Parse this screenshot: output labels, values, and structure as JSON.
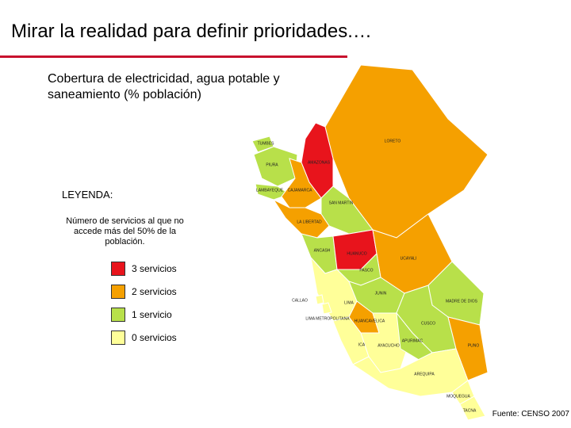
{
  "header": {
    "title": "Mirar la realidad para definir prioridades.…"
  },
  "subtitle": "Cobertura de electricidad, agua potable y saneamiento (% población)",
  "legend": {
    "title": "LEYENDA:",
    "description": "Número de servicios al que no accede más del 50% de la población.",
    "items": [
      {
        "label": "3 servicios",
        "color": "#e8141c"
      },
      {
        "label": "2 servicios",
        "color": "#f5a000"
      },
      {
        "label": "1 servicio",
        "color": "#b8e04a"
      },
      {
        "label": "0 servicios",
        "color": "#ffff99"
      }
    ]
  },
  "map": {
    "regions": [
      {
        "name": "LORETO",
        "color": "#f5a000"
      },
      {
        "name": "AMAZONAS",
        "color": "#e8141c"
      },
      {
        "name": "TUMBES",
        "color": "#b8e04a"
      },
      {
        "name": "PIURA",
        "color": "#b8e04a"
      },
      {
        "name": "LAMBAYEQUE",
        "color": "#b8e04a"
      },
      {
        "name": "CAJAMARCA",
        "color": "#f5a000"
      },
      {
        "name": "SAN MARTIN",
        "color": "#b8e04a"
      },
      {
        "name": "LA LIBERTAD",
        "color": "#f5a000"
      },
      {
        "name": "ANCASH",
        "color": "#b8e04a"
      },
      {
        "name": "HUANUCO",
        "color": "#e8141c"
      },
      {
        "name": "UCAYALI",
        "color": "#f5a000"
      },
      {
        "name": "PASCO",
        "color": "#b8e04a"
      },
      {
        "name": "LIMA",
        "color": "#ffff99"
      },
      {
        "name": "JUNIN",
        "color": "#b8e04a"
      },
      {
        "name": "MADRE DE DIOS",
        "color": "#b8e04a"
      },
      {
        "name": "CUSCO",
        "color": "#b8e04a"
      },
      {
        "name": "HUANCAVELICA",
        "color": "#f5a000"
      },
      {
        "name": "ICA",
        "color": "#ffff99"
      },
      {
        "name": "AYACUCHO",
        "color": "#ffff99"
      },
      {
        "name": "APURIMAC",
        "color": "#b8e04a"
      },
      {
        "name": "PUNO",
        "color": "#f5a000"
      },
      {
        "name": "AREQUIPA",
        "color": "#ffff99"
      },
      {
        "name": "MOQUEGUA",
        "color": "#ffff99"
      },
      {
        "name": "TACNA",
        "color": "#ffff99"
      },
      {
        "name": "CALLAO",
        "color": "#ffff99"
      },
      {
        "name": "LIMA METROPOLITANA",
        "color": "#ffff99"
      }
    ]
  },
  "source": "Fuente: CENSO 2007"
}
